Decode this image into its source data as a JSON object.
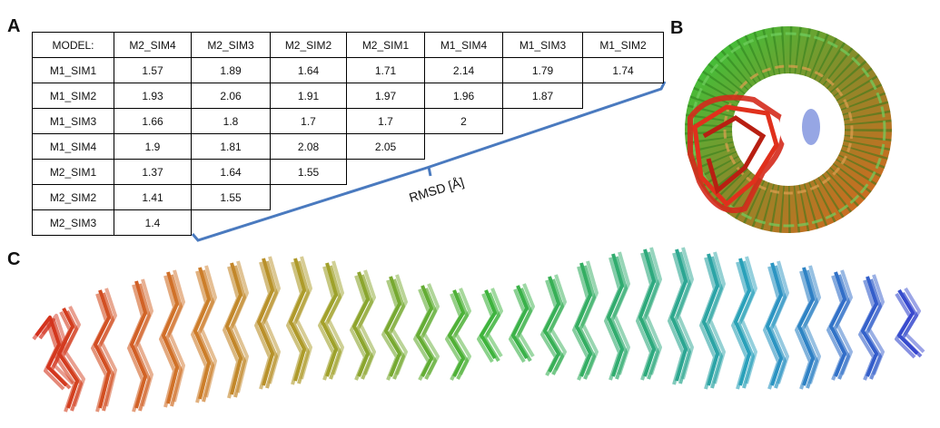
{
  "panel_labels": {
    "a": "A",
    "b": "B",
    "c": "C"
  },
  "table": {
    "header": [
      "MODEL:",
      "M2_SIM4",
      "M2_SIM3",
      "M2_SIM2",
      "M2_SIM1",
      "M1_SIM4",
      "M1_SIM3",
      "M1_SIM2"
    ],
    "rows": [
      {
        "label": "M1_SIM1",
        "values": [
          1.57,
          1.89,
          1.64,
          1.71,
          2.14,
          1.79,
          1.74
        ]
      },
      {
        "label": "M1_SIM2",
        "values": [
          1.93,
          2.06,
          1.91,
          1.97,
          1.96,
          1.87
        ]
      },
      {
        "label": "M1_SIM3",
        "values": [
          1.66,
          1.8,
          1.7,
          1.7,
          2
        ]
      },
      {
        "label": "M1_SIM4",
        "values": [
          1.9,
          1.81,
          2.08,
          2.05
        ]
      },
      {
        "label": "M2_SIM1",
        "values": [
          1.37,
          1.64,
          1.55
        ]
      },
      {
        "label": "M2_SIM2",
        "values": [
          1.41,
          1.55
        ]
      },
      {
        "label": "M2_SIM3",
        "values": [
          1.4
        ]
      }
    ]
  },
  "annotation": "RMSD [Å]"
}
